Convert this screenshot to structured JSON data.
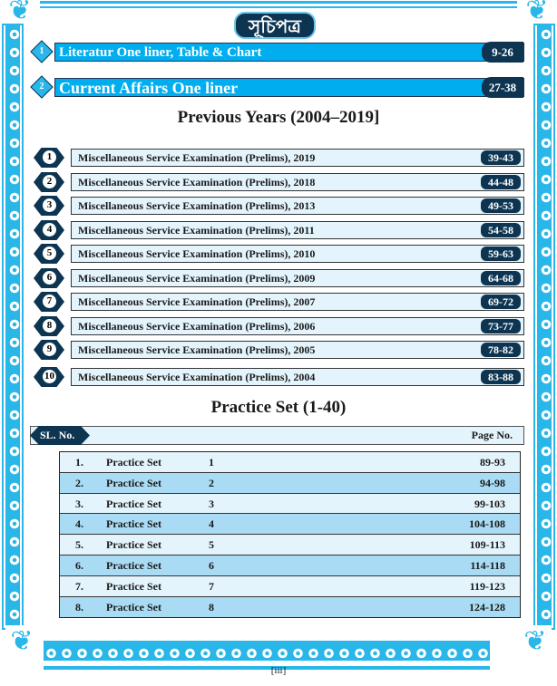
{
  "title": "সূচিপত্র",
  "sections": [
    {
      "num": "1",
      "label": "Literatur One liner, Table & Chart",
      "pages": "9-26"
    },
    {
      "num": "2",
      "label": "Current Affairs One liner",
      "pages": "27-38"
    }
  ],
  "previous_heading": "Previous Years (2004–2019]",
  "exams": [
    {
      "num": "1",
      "label": "Miscellaneous Service Examination (Prelims), 2019",
      "pages": "39-43"
    },
    {
      "num": "2",
      "label": "Miscellaneous Service Examination (Prelims), 2018",
      "pages": "44-48"
    },
    {
      "num": "3",
      "label": "Miscellaneous Service Examination (Prelims), 2013",
      "pages": "49-53"
    },
    {
      "num": "4",
      "label": "Miscellaneous Service Examination (Prelims), 2011",
      "pages": "54-58"
    },
    {
      "num": "5",
      "label": "Miscellaneous Service Examination (Prelims), 2010",
      "pages": "59-63"
    },
    {
      "num": "6",
      "label": "Miscellaneous Service Examination (Prelims), 2009",
      "pages": "64-68"
    },
    {
      "num": "7",
      "label": "Miscellaneous Service Examination (Prelims), 2007",
      "pages": "69-72"
    },
    {
      "num": "8",
      "label": "Miscellaneous Service Examination (Prelims), 2006",
      "pages": "73-77"
    },
    {
      "num": "9",
      "label": "Miscellaneous Service Examination (Prelims), 2005",
      "pages": "78-82"
    },
    {
      "num": "10",
      "label": "Miscellaneous Service Examination (Prelims), 2004",
      "pages": "83-88"
    }
  ],
  "practice_heading": "Practice Set (1-40)",
  "table_header": {
    "sl": "SL. No.",
    "page": "Page No."
  },
  "practice": [
    {
      "sl": "1.",
      "name": "Practice Set",
      "set": "1",
      "pages": "89-93"
    },
    {
      "sl": "2.",
      "name": "Practice Set",
      "set": "2",
      "pages": "94-98"
    },
    {
      "sl": "3.",
      "name": "Practice Set",
      "set": "3",
      "pages": "99-103"
    },
    {
      "sl": "4.",
      "name": "Practice Set",
      "set": "4",
      "pages": "104-108"
    },
    {
      "sl": "5.",
      "name": "Practice Set",
      "set": "5",
      "pages": "109-113"
    },
    {
      "sl": "6.",
      "name": "Practice Set",
      "set": "6",
      "pages": "114-118"
    },
    {
      "sl": "7.",
      "name": "Practice Set",
      "set": "7",
      "pages": "119-123"
    },
    {
      "sl": "8.",
      "name": "Practice Set",
      "set": "8",
      "pages": "124-128"
    }
  ],
  "page_number": "[iii]",
  "colors": {
    "accent": "#00aeef",
    "dark": "#0d3552",
    "light_row": "#e4f4fc",
    "alt_row": "#a9dcf4"
  }
}
